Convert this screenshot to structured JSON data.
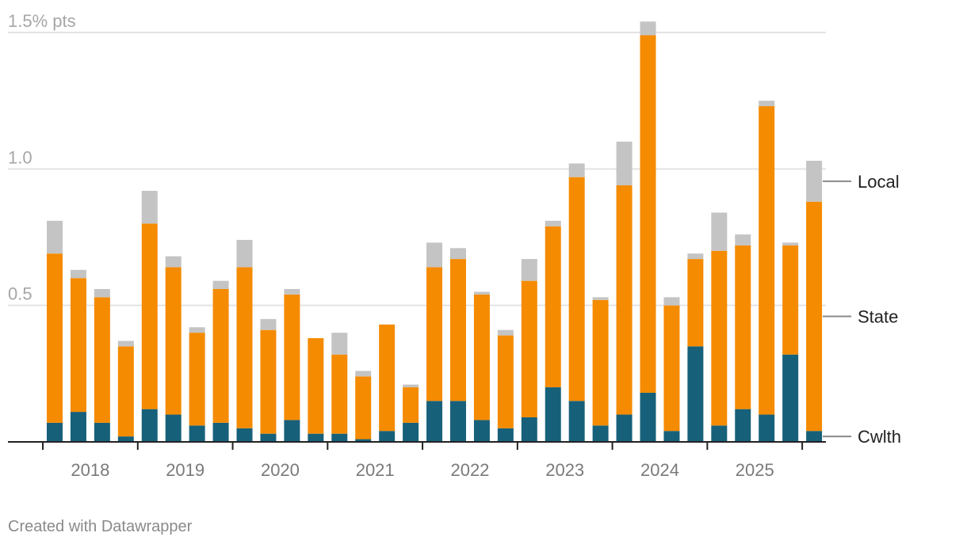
{
  "chart_data": {
    "type": "bar",
    "stacked": true,
    "y_unit": "% pts",
    "ylim": [
      0,
      1.5
    ],
    "yticks": [
      {
        "value": 0.5,
        "label": "0.5"
      },
      {
        "value": 1.0,
        "label": "1.0"
      },
      {
        "value": 1.5,
        "label": "1.5% pts"
      }
    ],
    "x_year_labels": [
      "2018",
      "2019",
      "2020",
      "2021",
      "2022",
      "2023",
      "2024",
      "2025"
    ],
    "x_year_label_positions": [
      1.5,
      5.5,
      9.5,
      13.5,
      17.5,
      21.5,
      25.5,
      29.5
    ],
    "quarters_count": 33,
    "series": [
      {
        "name": "Cwlth",
        "color": "#17607a",
        "values": [
          0.07,
          0.11,
          0.07,
          0.02,
          0.12,
          0.1,
          0.06,
          0.07,
          0.05,
          0.03,
          0.08,
          0.03,
          0.03,
          0.01,
          0.04,
          0.07,
          0.15,
          0.15,
          0.08,
          0.05,
          0.09,
          0.2,
          0.15,
          0.06,
          0.1,
          0.18,
          0.04,
          0.35,
          0.06,
          0.12,
          0.1,
          0.32,
          0.04
        ]
      },
      {
        "name": "State",
        "color": "#f58b00",
        "values": [
          0.62,
          0.49,
          0.46,
          0.33,
          0.68,
          0.54,
          0.34,
          0.49,
          0.59,
          0.38,
          0.46,
          0.35,
          0.29,
          0.23,
          0.39,
          0.13,
          0.49,
          0.52,
          0.46,
          0.34,
          0.5,
          0.59,
          0.82,
          0.46,
          0.84,
          1.31,
          0.46,
          0.32,
          0.64,
          0.6,
          1.13,
          0.4,
          0.84
        ]
      },
      {
        "name": "Local",
        "color": "#c4c4c4",
        "values": [
          0.12,
          0.03,
          0.03,
          0.02,
          0.12,
          0.04,
          0.02,
          0.03,
          0.1,
          0.04,
          0.02,
          0.0,
          0.08,
          0.02,
          0.0,
          0.01,
          0.09,
          0.04,
          0.01,
          0.02,
          0.08,
          0.02,
          0.05,
          0.01,
          0.16,
          0.05,
          0.03,
          0.02,
          0.14,
          0.04,
          0.02,
          0.01,
          0.15
        ]
      }
    ],
    "legend_placement": "right-end labels"
  },
  "footer": {
    "credit": "Created with Datawrapper"
  }
}
